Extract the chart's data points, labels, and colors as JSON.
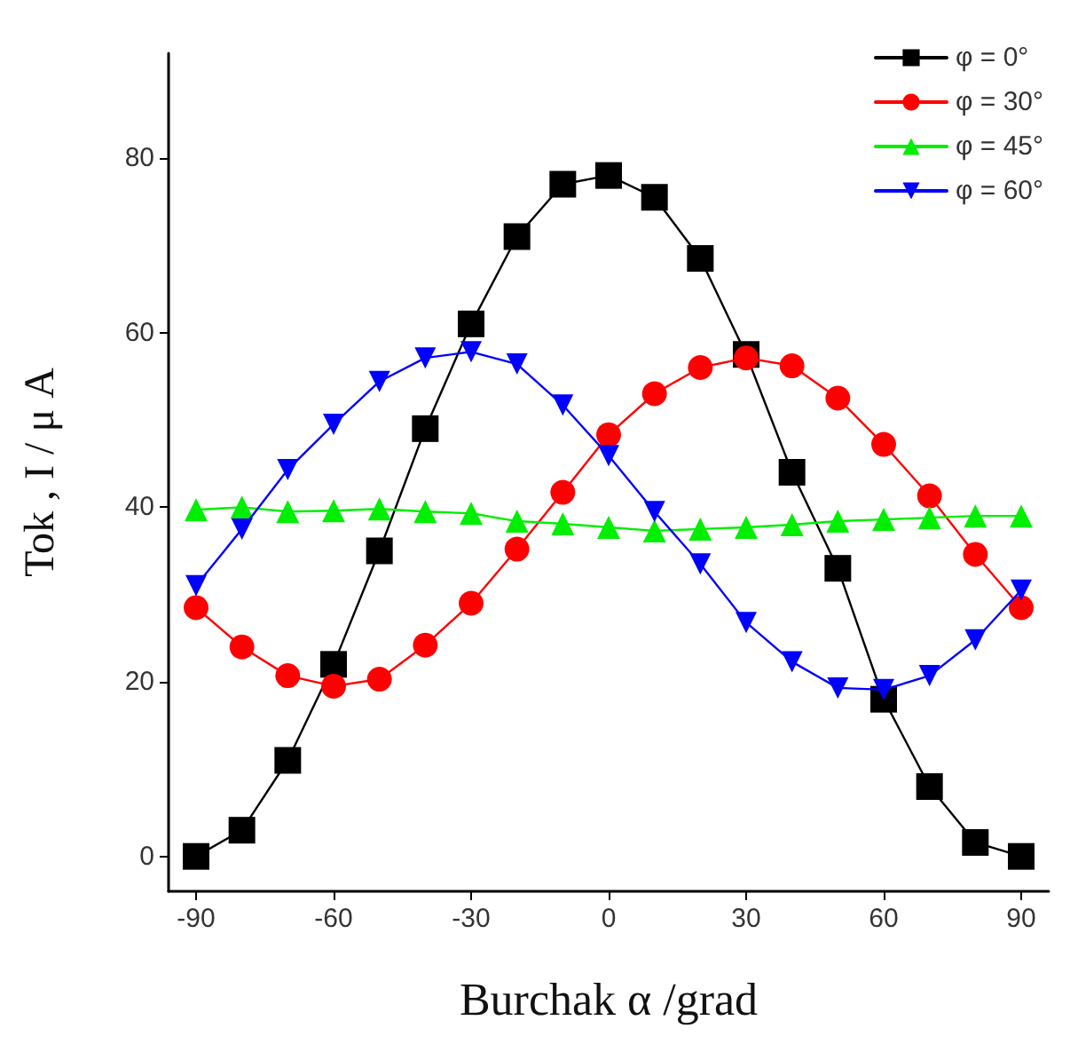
{
  "chart_data": {
    "type": "line",
    "xlabel": "Burchak α /grad",
    "ylabel": "Tok , I / μ A",
    "x": [
      -90,
      -80,
      -70,
      -60,
      -50,
      -40,
      -30,
      -20,
      -10,
      0,
      10,
      20,
      30,
      40,
      50,
      60,
      70,
      80,
      90
    ],
    "series": [
      {
        "name": "φ = 0°",
        "color": "#000000",
        "marker": "square",
        "values": [
          0,
          3,
          11,
          22,
          35,
          49,
          61,
          71,
          77,
          78,
          75.5,
          68.5,
          57.5,
          44,
          33,
          18,
          8,
          1.6,
          0
        ]
      },
      {
        "name": "φ = 30°",
        "color": "#ff0000",
        "marker": "circle",
        "values": [
          28.5,
          24,
          20.7,
          19.5,
          20.3,
          24.2,
          29,
          35.2,
          41.7,
          48.3,
          53,
          56,
          57.1,
          56.2,
          52.5,
          47.2,
          41.3,
          34.6,
          28.5
        ]
      },
      {
        "name": "φ = 45°",
        "color": "#00ee00",
        "marker": "triangle",
        "values": [
          39.7,
          40,
          39.5,
          39.6,
          39.8,
          39.5,
          39.3,
          38.4,
          38.1,
          37.7,
          37.3,
          37.5,
          37.7,
          38,
          38.4,
          38.6,
          38.8,
          39,
          39
        ]
      },
      {
        "name": "φ = 60°",
        "color": "#0000ff",
        "marker": "triangle-down",
        "values": [
          31,
          37.5,
          44.3,
          49.5,
          54.4,
          57.1,
          57.8,
          56.4,
          51.7,
          45.9,
          39.5,
          33.5,
          26.8,
          22.3,
          19.3,
          19.1,
          20.7,
          24.8,
          30.5
        ]
      }
    ],
    "xlim": [
      -96,
      96
    ],
    "xticks": [
      -90,
      -60,
      -30,
      0,
      30,
      60,
      90
    ],
    "ylim": [
      -4,
      92
    ],
    "yticks": [
      0,
      20,
      40,
      60,
      80
    ],
    "grid": false,
    "legend": "top right",
    "line_style": "solid"
  }
}
